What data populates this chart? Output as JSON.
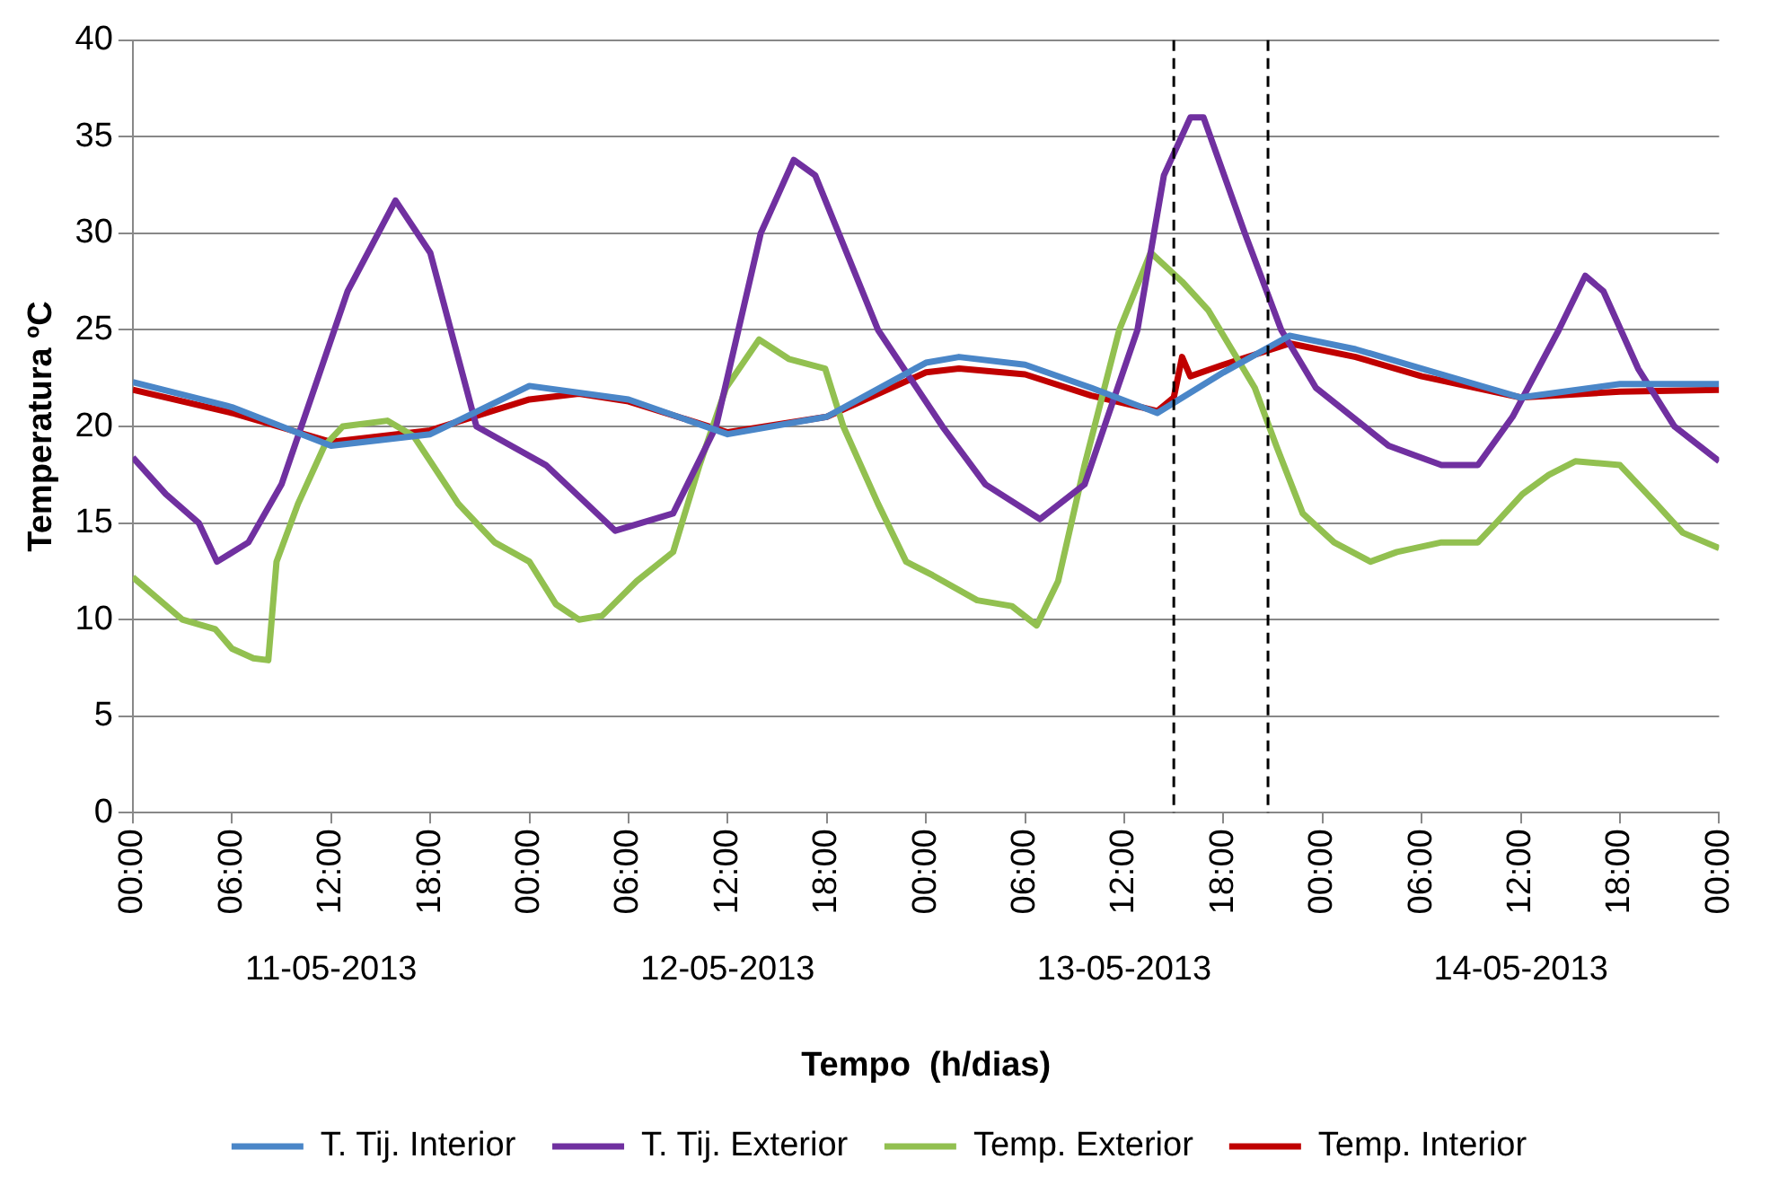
{
  "chart_data": {
    "type": "line",
    "xlabel": "Tempo  (h/dias)",
    "ylabel": "Temperatura ºC",
    "xlim": [
      "2013-05-11T00:00",
      "2013-05-15T00:00"
    ],
    "ylim": [
      0,
      40
    ],
    "yticks": [
      0,
      5,
      10,
      15,
      20,
      25,
      30,
      35,
      40
    ],
    "xticks": [
      {
        "value": "2013-05-11T00:00",
        "label": "00:00"
      },
      {
        "value": "2013-05-11T06:00",
        "label": "06:00"
      },
      {
        "value": "2013-05-11T12:00",
        "label": "12:00"
      },
      {
        "value": "2013-05-11T18:00",
        "label": "18:00"
      },
      {
        "value": "2013-05-12T00:00",
        "label": "00:00"
      },
      {
        "value": "2013-05-12T06:00",
        "label": "06:00"
      },
      {
        "value": "2013-05-12T12:00",
        "label": "12:00"
      },
      {
        "value": "2013-05-12T18:00",
        "label": "18:00"
      },
      {
        "value": "2013-05-13T00:00",
        "label": "00:00"
      },
      {
        "value": "2013-05-13T06:00",
        "label": "06:00"
      },
      {
        "value": "2013-05-13T12:00",
        "label": "12:00"
      },
      {
        "value": "2013-05-13T18:00",
        "label": "18:00"
      },
      {
        "value": "2013-05-14T00:00",
        "label": "00:00"
      },
      {
        "value": "2013-05-14T06:00",
        "label": "06:00"
      },
      {
        "value": "2013-05-14T12:00",
        "label": "12:00"
      },
      {
        "value": "2013-05-14T18:00",
        "label": "18:00"
      },
      {
        "value": "2013-05-15T00:00",
        "label": "00:00"
      }
    ],
    "annotations": [
      "11-05-2013",
      "12-05-2013",
      "13-05-2013",
      "14-05-2013"
    ],
    "grid": "y",
    "legend": "bottom",
    "marker": "none",
    "line_style": "solid",
    "ref_lines": [
      {
        "axis": "x",
        "value": "2013-05-13T15:00",
        "color": "#000000",
        "line_style": "dashed"
      },
      {
        "axis": "x",
        "value": "2013-05-13T20:42",
        "color": "#000000",
        "line_style": "dashed"
      }
    ],
    "series": [
      {
        "name": "T. Tij. Interior",
        "color": "#4a86c8",
        "x": [
          "2013-05-11T00:00",
          "2013-05-11T06:00",
          "2013-05-11T12:00",
          "2013-05-11T18:00",
          "2013-05-12T00:00",
          "2013-05-12T06:00",
          "2013-05-12T12:00",
          "2013-05-12T18:00",
          "2013-05-13T00:00",
          "2013-05-13T02:00",
          "2013-05-13T06:00",
          "2013-05-13T10:00",
          "2013-05-13T14:00",
          "2013-05-13T18:00",
          "2013-05-13T22:00",
          "2013-05-14T02:00",
          "2013-05-14T06:00",
          "2013-05-14T12:00",
          "2013-05-14T18:00",
          "2013-05-15T00:00"
        ],
        "values": [
          22.3,
          21,
          19,
          19.6,
          22.1,
          21.4,
          19.6,
          20.5,
          23.3,
          23.6,
          23.2,
          22,
          20.7,
          22.8,
          24.7,
          24,
          23,
          21.5,
          22.2,
          22.2
        ]
      },
      {
        "name": "T. Tij. Exterior",
        "color": "#7030a0",
        "x": [
          "2013-05-11T00:00",
          "2013-05-11T02:00",
          "2013-05-11T04:00",
          "2013-05-11T05:06",
          "2013-05-11T07:00",
          "2013-05-11T09:00",
          "2013-05-11T11:00",
          "2013-05-11T13:00",
          "2013-05-11T15:54",
          "2013-05-11T18:00",
          "2013-05-11T20:48",
          "2013-05-12T01:00",
          "2013-05-12T05:12",
          "2013-05-12T08:42",
          "2013-05-12T11:18",
          "2013-05-12T14:00",
          "2013-05-12T16:00",
          "2013-05-12T17:18",
          "2013-05-12T21:06",
          "2013-05-13T01:00",
          "2013-05-13T03:36",
          "2013-05-13T06:54",
          "2013-05-13T09:36",
          "2013-05-13T12:48",
          "2013-05-13T14:24",
          "2013-05-13T16:00",
          "2013-05-13T16:48",
          "2013-05-13T19:18",
          "2013-05-13T21:30",
          "2013-05-13T23:36",
          "2013-05-14T04:00",
          "2013-05-14T07:12",
          "2013-05-14T09:24",
          "2013-05-14T11:30",
          "2013-05-14T14:18",
          "2013-05-14T15:54",
          "2013-05-14T17:00",
          "2013-05-14T19:06",
          "2013-05-14T21:18",
          "2013-05-15T00:00"
        ],
        "values": [
          18.4,
          16.5,
          15,
          13,
          14,
          17,
          22,
          27,
          31.7,
          29,
          20,
          18,
          14.6,
          15.5,
          20,
          30,
          33.8,
          33,
          25,
          20,
          17,
          15.2,
          17,
          25,
          33,
          36,
          36,
          30,
          25,
          22,
          19,
          18,
          18,
          20.5,
          25,
          27.8,
          27,
          23,
          20,
          18.2
        ]
      },
      {
        "name": "Temp. Exterior",
        "color": "#92c050",
        "x": [
          "2013-05-11T00:00",
          "2013-05-11T03:00",
          "2013-05-11T05:00",
          "2013-05-11T06:00",
          "2013-05-11T07:18",
          "2013-05-11T08:12",
          "2013-05-11T08:42",
          "2013-05-11T10:00",
          "2013-05-11T11:36",
          "2013-05-11T12:42",
          "2013-05-11T15:24",
          "2013-05-11T17:00",
          "2013-05-11T19:42",
          "2013-05-11T21:54",
          "2013-05-12T00:00",
          "2013-05-12T01:36",
          "2013-05-12T03:00",
          "2013-05-12T04:24",
          "2013-05-12T06:30",
          "2013-05-12T08:42",
          "2013-05-12T10:18",
          "2013-05-12T11:54",
          "2013-05-12T13:54",
          "2013-05-12T15:42",
          "2013-05-12T17:54",
          "2013-05-12T19:00",
          "2013-05-12T21:06",
          "2013-05-12T22:48",
          "2013-05-13T00:24",
          "2013-05-13T03:06",
          "2013-05-13T05:12",
          "2013-05-13T06:42",
          "2013-05-13T08:00",
          "2013-05-13T09:36",
          "2013-05-13T11:42",
          "2013-05-13T13:36",
          "2013-05-13T15:30",
          "2013-05-13T17:06",
          "2013-05-13T18:30",
          "2013-05-13T19:54",
          "2013-05-13T21:12",
          "2013-05-13T22:48",
          "2013-05-14T00:42",
          "2013-05-14T02:54",
          "2013-05-14T04:30",
          "2013-05-14T07:12",
          "2013-05-14T09:24",
          "2013-05-14T10:30",
          "2013-05-14T12:06",
          "2013-05-14T13:42",
          "2013-05-14T15:18",
          "2013-05-14T18:00",
          "2013-05-14T20:12",
          "2013-05-14T21:48",
          "2013-05-15T00:00"
        ],
        "values": [
          12.2,
          10,
          9.5,
          8.5,
          8,
          7.9,
          13,
          16,
          19,
          20,
          20.3,
          19.5,
          16,
          14,
          13,
          10.8,
          10,
          10.2,
          12,
          13.5,
          18,
          22,
          24.5,
          23.5,
          23,
          20,
          16,
          13,
          12.3,
          11,
          10.7,
          9.7,
          12,
          18,
          25,
          29,
          27.5,
          26,
          24,
          22,
          19,
          15.5,
          14,
          13,
          13.5,
          14,
          14,
          15,
          16.5,
          17.5,
          18.2,
          18,
          16,
          14.5,
          13.7
        ]
      },
      {
        "name": "Temp. Interior",
        "color": "#c00000",
        "x": [
          "2013-05-11T00:00",
          "2013-05-11T06:00",
          "2013-05-11T12:00",
          "2013-05-11T18:00",
          "2013-05-12T00:00",
          "2013-05-12T03:00",
          "2013-05-12T06:00",
          "2013-05-12T12:00",
          "2013-05-12T18:00",
          "2013-05-13T00:00",
          "2013-05-13T02:00",
          "2013-05-13T06:00",
          "2013-05-13T10:00",
          "2013-05-13T14:00",
          "2013-05-13T15:00",
          "2013-05-13T15:30",
          "2013-05-13T16:00",
          "2013-05-13T18:00",
          "2013-05-13T22:00",
          "2013-05-14T02:00",
          "2013-05-14T06:00",
          "2013-05-14T12:00",
          "2013-05-14T18:00",
          "2013-05-15T00:00"
        ],
        "values": [
          21.9,
          20.7,
          19.2,
          19.8,
          21.4,
          21.7,
          21.3,
          19.7,
          20.5,
          22.8,
          23,
          22.7,
          21.6,
          20.8,
          21.5,
          23.6,
          22.6,
          23.2,
          24.3,
          23.6,
          22.6,
          21.5,
          21.8,
          21.9
        ]
      }
    ]
  }
}
